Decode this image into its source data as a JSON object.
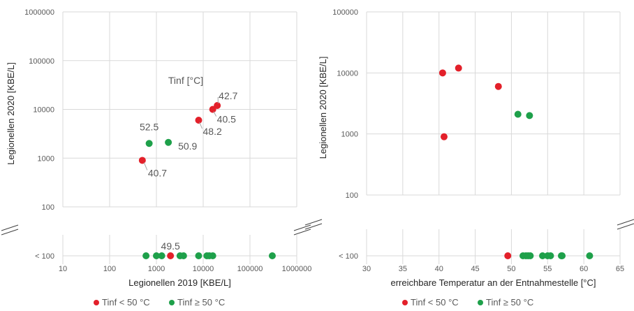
{
  "colors": {
    "lt50": "#e3202a",
    "ge50": "#1ea04a",
    "grid": "#d9d9d9",
    "text": "#595959"
  },
  "legend": {
    "lt50_label": "Tinf < 50 °C",
    "ge50_label": "Tinf ≥ 50 °C"
  },
  "chart_data": [
    {
      "type": "scatter",
      "xlabel": "Legionellen 2019 [KBE/L]",
      "ylabel": "Legionellen 2020 [KBE/L]",
      "x_scale": "log",
      "y_scale": "log",
      "xlim": [
        10,
        1000000
      ],
      "ylim": [
        100,
        1000000
      ],
      "x_ticks": [
        "10",
        "100",
        "1000",
        "10000",
        "100000",
        "1000000"
      ],
      "y_ticks": [
        "100",
        "1000",
        "10000",
        "100000",
        "1000000"
      ],
      "y_below_label": "< 100",
      "annotation_title": "Tinf [°C]",
      "grid": true,
      "legend_position": "bottom",
      "series": [
        {
          "name": "Tinf < 50 °C",
          "points": [
            {
              "x": 500,
              "y": 900,
              "label": "40.7"
            },
            {
              "x": 8000,
              "y": 6000,
              "label": "48.2"
            },
            {
              "x": 16000,
              "y": 10000,
              "label": "40.5"
            },
            {
              "x": 20000,
              "y": 12000,
              "label": "42.7"
            },
            {
              "x": 2000,
              "y": "< 100",
              "label": "49.5"
            }
          ]
        },
        {
          "name": "Tinf ≥ 50 °C",
          "points": [
            {
              "x": 700,
              "y": 2000,
              "label": "52.5"
            },
            {
              "x": 1800,
              "y": 2100,
              "label": "50.9"
            },
            {
              "x": 600,
              "y": "< 100"
            },
            {
              "x": 1000,
              "y": "< 100"
            },
            {
              "x": 1300,
              "y": "< 100"
            },
            {
              "x": 3200,
              "y": "< 100"
            },
            {
              "x": 3800,
              "y": "< 100"
            },
            {
              "x": 8000,
              "y": "< 100"
            },
            {
              "x": 12000,
              "y": "< 100"
            },
            {
              "x": 13500,
              "y": "< 100"
            },
            {
              "x": 16000,
              "y": "< 100"
            },
            {
              "x": 300000,
              "y": "< 100"
            }
          ]
        }
      ]
    },
    {
      "type": "scatter",
      "xlabel": "erreichbare Temperatur an der Entnahmestelle [°C]",
      "ylabel": "Legionellen 2020 [KBE/L]",
      "x_scale": "linear",
      "y_scale": "log",
      "xlim": [
        30,
        65
      ],
      "ylim": [
        100,
        100000
      ],
      "x_ticks": [
        "30",
        "35",
        "40",
        "45",
        "50",
        "55",
        "60",
        "65"
      ],
      "y_ticks": [
        "100",
        "1000",
        "10000",
        "100000"
      ],
      "y_below_label": "< 100",
      "grid": true,
      "legend_position": "bottom",
      "series": [
        {
          "name": "Tinf < 50 °C",
          "points": [
            {
              "x": 40.5,
              "y": 10000
            },
            {
              "x": 42.7,
              "y": 12000
            },
            {
              "x": 48.2,
              "y": 6000
            },
            {
              "x": 40.7,
              "y": 900
            },
            {
              "x": 49.5,
              "y": "< 100"
            }
          ]
        },
        {
          "name": "Tinf ≥ 50 °C",
          "points": [
            {
              "x": 50.9,
              "y": 2100
            },
            {
              "x": 52.5,
              "y": 2000
            },
            {
              "x": 51.6,
              "y": "< 100"
            },
            {
              "x": 52.0,
              "y": "< 100"
            },
            {
              "x": 52.3,
              "y": "< 100"
            },
            {
              "x": 52.6,
              "y": "< 100"
            },
            {
              "x": 54.3,
              "y": "< 100"
            },
            {
              "x": 55.0,
              "y": "< 100"
            },
            {
              "x": 55.4,
              "y": "< 100"
            },
            {
              "x": 56.9,
              "y": "< 100"
            },
            {
              "x": 57.0,
              "y": "< 100"
            },
            {
              "x": 60.8,
              "y": "< 100"
            }
          ]
        }
      ]
    }
  ]
}
